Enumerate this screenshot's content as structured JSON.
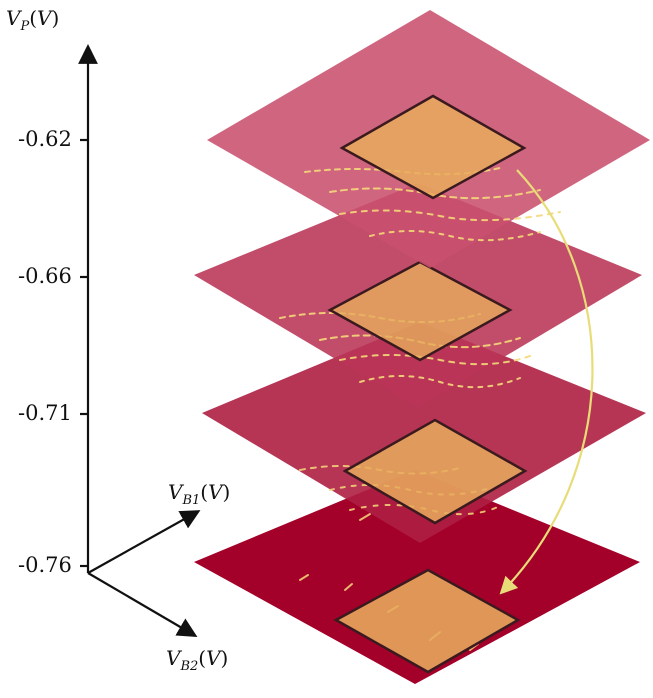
{
  "axes": {
    "vertical": {
      "symbol": "V",
      "subscript": "P",
      "unit": "V",
      "ticks": [
        "-0.62",
        "-0.66",
        "-0.71",
        "-0.76"
      ]
    },
    "depth_1": {
      "symbol": "V",
      "subscript": "B1",
      "unit": "V"
    },
    "depth_2": {
      "symbol": "V",
      "subscript": "B2",
      "unit": "V"
    }
  },
  "colors": {
    "plane_top": "#c9506e",
    "plane_2": "#b93457",
    "plane_3": "#ae1f42",
    "plane_bottom": "#a3002a",
    "highlight_fill": "#e7ab5d",
    "highlight_stroke": "#3a1a1f",
    "streak": "#f4d97a",
    "arrow": "#e8dc78",
    "axis": "#111111"
  },
  "layers": [
    {
      "vp": "-0.62",
      "color_key": "plane_top"
    },
    {
      "vp": "-0.66",
      "color_key": "plane_2"
    },
    {
      "vp": "-0.71",
      "color_key": "plane_3"
    },
    {
      "vp": "-0.76",
      "color_key": "plane_bottom"
    }
  ]
}
